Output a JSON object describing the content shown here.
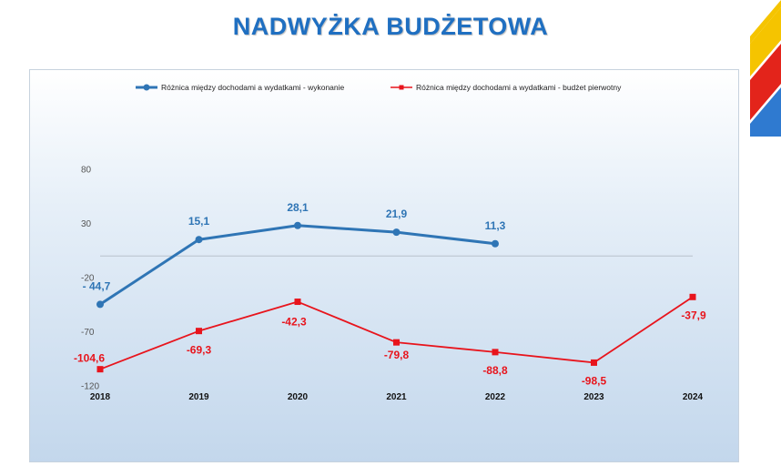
{
  "title": "NADWYŻKA BUDŻETOWA",
  "brand_colors": [
    "#f5c400",
    "#e3241b",
    "#2f7ad0"
  ],
  "chart_data": {
    "type": "line",
    "categories": [
      "2018",
      "2019",
      "2020",
      "2021",
      "2022",
      "2023",
      "2024"
    ],
    "series": [
      {
        "name": "Różnica między dochodami a wydatkami - wykonanie",
        "color": "#2f75b5",
        "marker": "circle",
        "values": [
          -44.7,
          15.1,
          28.1,
          21.9,
          11.3,
          null,
          null
        ],
        "labels": [
          "- 44,7",
          "15,1",
          "28,1",
          "21,9",
          "11,3",
          "",
          ""
        ]
      },
      {
        "name": "Różnica między dochodami a wydatkami - budżet pierwotny",
        "color": "#e8141c",
        "marker": "square",
        "values": [
          -104.6,
          -69.3,
          -42.3,
          -79.8,
          -88.8,
          -98.5,
          -37.9
        ],
        "labels": [
          "-104,6",
          "-69,3",
          "-42,3",
          "-79,8",
          "-88,8",
          "-98,5",
          "-37,9"
        ]
      }
    ],
    "yticks": [
      80,
      30,
      -20,
      -70,
      -120
    ],
    "ytick_labels": [
      "80",
      "30",
      "-20",
      "-70",
      "-120"
    ],
    "ylim": [
      -120,
      80
    ],
    "zero_line": true,
    "legend": "top",
    "grid": false
  }
}
